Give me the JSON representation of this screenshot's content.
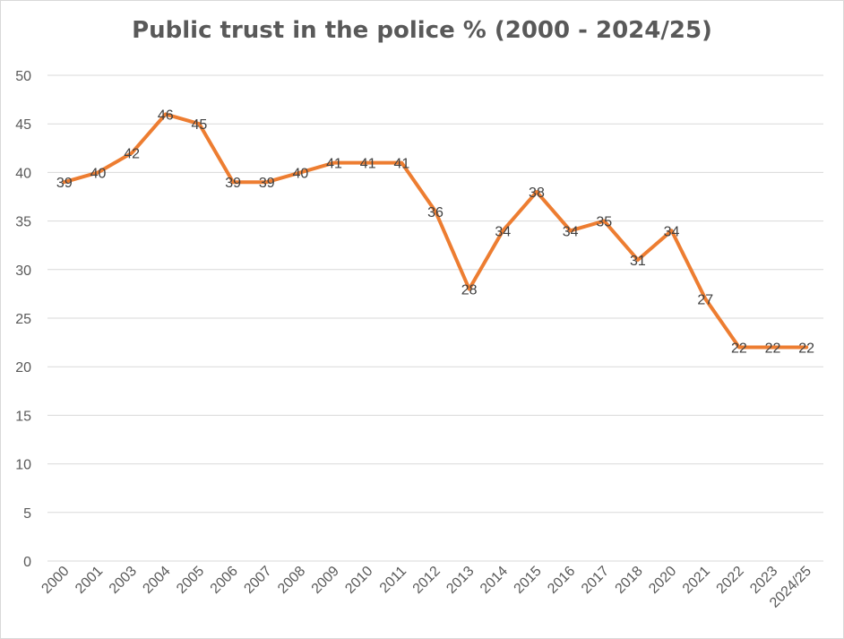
{
  "chart_data": {
    "type": "line",
    "title": "Public trust in the police % (2000 - 2024/25)",
    "xlabel": "",
    "ylabel": "",
    "categories": [
      "2000",
      "2001",
      "2003",
      "2004",
      "2005",
      "2006",
      "2007",
      "2008",
      "2009",
      "2010",
      "2011",
      "2012",
      "2013",
      "2014",
      "2015",
      "2016",
      "2017",
      "2018",
      "2020",
      "2021",
      "2022",
      "2023",
      "2024/25"
    ],
    "series": [
      {
        "values": [
          39,
          40,
          42,
          46,
          45,
          39,
          39,
          40,
          41,
          41,
          41,
          36,
          28,
          34,
          38,
          34,
          35,
          31,
          34,
          27,
          22,
          22,
          22
        ],
        "color": "#ED7D31"
      }
    ],
    "ylim": [
      0,
      50
    ],
    "yticks": [
      0,
      5,
      10,
      15,
      20,
      25,
      30,
      35,
      40,
      45,
      50
    ],
    "grid": true,
    "legend": "none",
    "data_labels": true
  }
}
